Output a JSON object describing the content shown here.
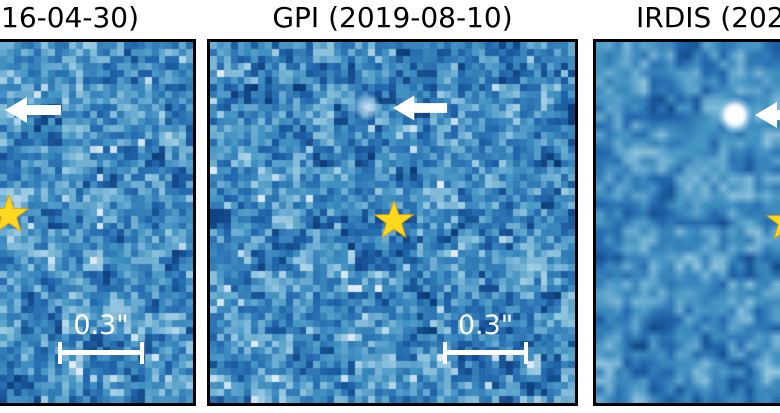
{
  "figure": {
    "kind": "three-panel direct-imaging cutouts",
    "panels": [
      {
        "title": "16-04-30)",
        "scale_bar": "0.3\"",
        "markers": [
          "left-arrow",
          "star-marker",
          "scale-bar"
        ]
      },
      {
        "title": "GPI (2019-08-10)",
        "scale_bar": "0.3\"",
        "markers": [
          "left-arrow",
          "point-source",
          "star-marker",
          "scale-bar"
        ]
      },
      {
        "title": "IRDIS (202",
        "markers": [
          "left-arrow-partial",
          "point-source-bright",
          "star-marker-partial"
        ]
      }
    ],
    "colors": {
      "background": "#ffffff",
      "title_text": "#000000",
      "panel_border": "#000000",
      "annotation_white": "#ffffff",
      "star_yellow": "#ffd71e",
      "star_edge": "#e2a400",
      "noise_dark": "#08306b",
      "noise_mid": "#4393c3",
      "noise_light": "#deebf7"
    }
  }
}
